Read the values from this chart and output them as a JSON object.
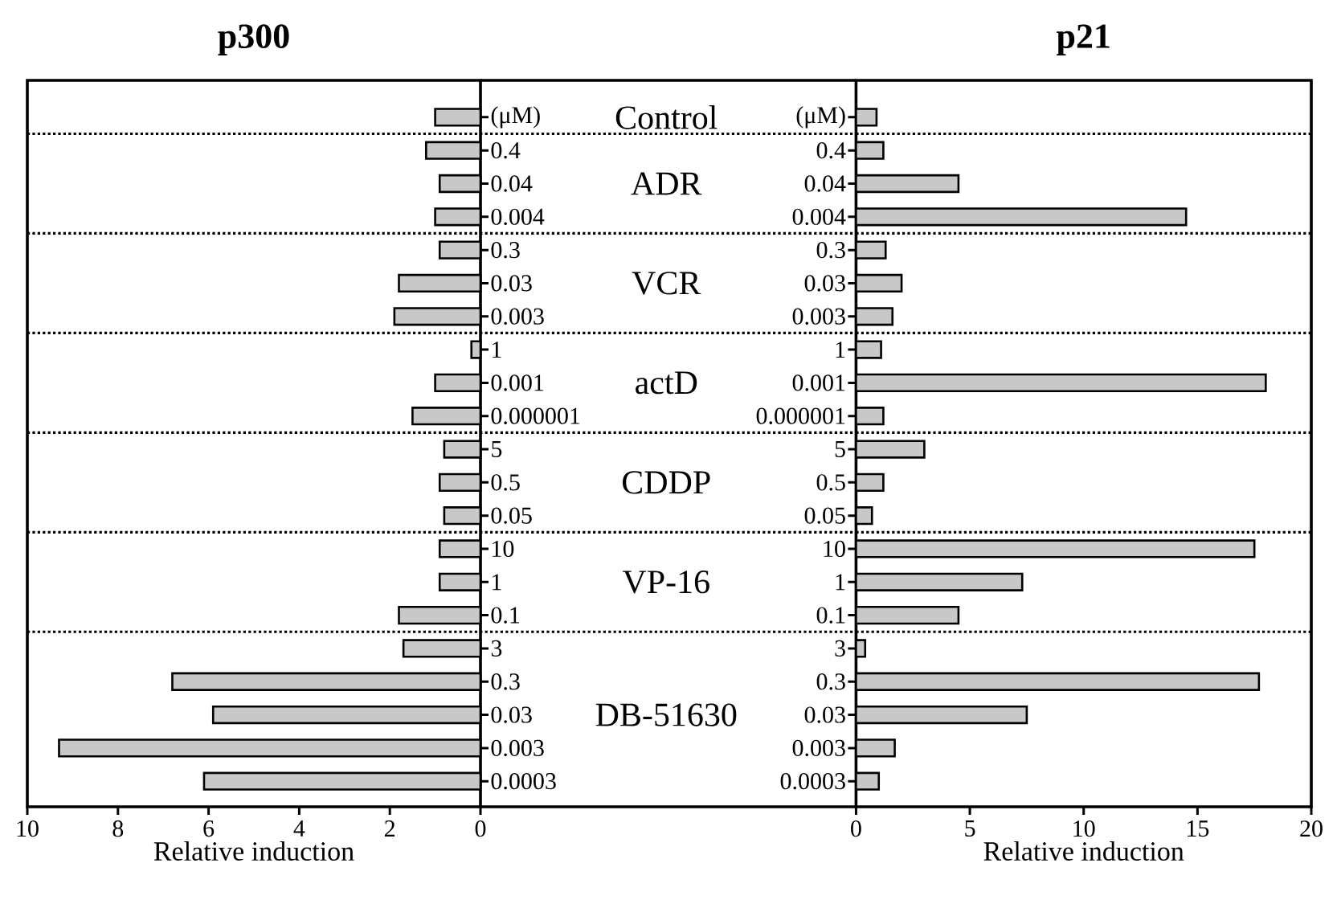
{
  "chart_data": [
    {
      "type": "bar",
      "orientation": "horizontal",
      "title": "p300",
      "xlabel": "Relative induction",
      "categories": [
        "(μM)",
        "0.4",
        "0.04",
        "0.004",
        "0.3",
        "0.03",
        "0.003",
        "1",
        "0.001",
        "0.000001",
        "5",
        "0.5",
        "0.05",
        "10",
        "1",
        "0.1",
        "3",
        "0.3",
        "0.03",
        "0.003",
        "0.0003"
      ],
      "values": [
        1.0,
        1.2,
        0.9,
        1.0,
        0.9,
        1.8,
        1.9,
        0.2,
        1.0,
        1.5,
        0.8,
        0.9,
        0.8,
        0.9,
        0.9,
        1.8,
        1.7,
        6.8,
        5.9,
        9.3,
        6.1
      ],
      "color": "#c8c8c8",
      "xlim": [
        10,
        0
      ],
      "xticks": [
        10,
        8,
        6,
        4,
        2,
        0
      ],
      "annotations": [
        "Control",
        "ADR",
        "VCR",
        "actD",
        "CDDP",
        "VP-16",
        "DB-51630"
      ]
    },
    {
      "type": "bar",
      "orientation": "horizontal",
      "title": "p21",
      "xlabel": "Relative induction",
      "categories": [
        "(μM)",
        "0.4",
        "0.04",
        "0.004",
        "0.3",
        "0.03",
        "0.003",
        "1",
        "0.001",
        "0.000001",
        "5",
        "0.5",
        "0.05",
        "10",
        "1",
        "0.1",
        "3",
        "0.3",
        "0.03",
        "0.003",
        "0.0003"
      ],
      "values": [
        0.9,
        1.2,
        4.5,
        14.5,
        1.3,
        2.0,
        1.6,
        1.1,
        18.0,
        1.2,
        3.0,
        1.2,
        0.7,
        17.5,
        7.3,
        4.5,
        0.4,
        17.7,
        7.5,
        1.7,
        1.0
      ],
      "color": "#c8c8c8",
      "xlim": [
        0,
        20
      ],
      "xticks": [
        0,
        5,
        10,
        15,
        20
      ]
    }
  ]
}
